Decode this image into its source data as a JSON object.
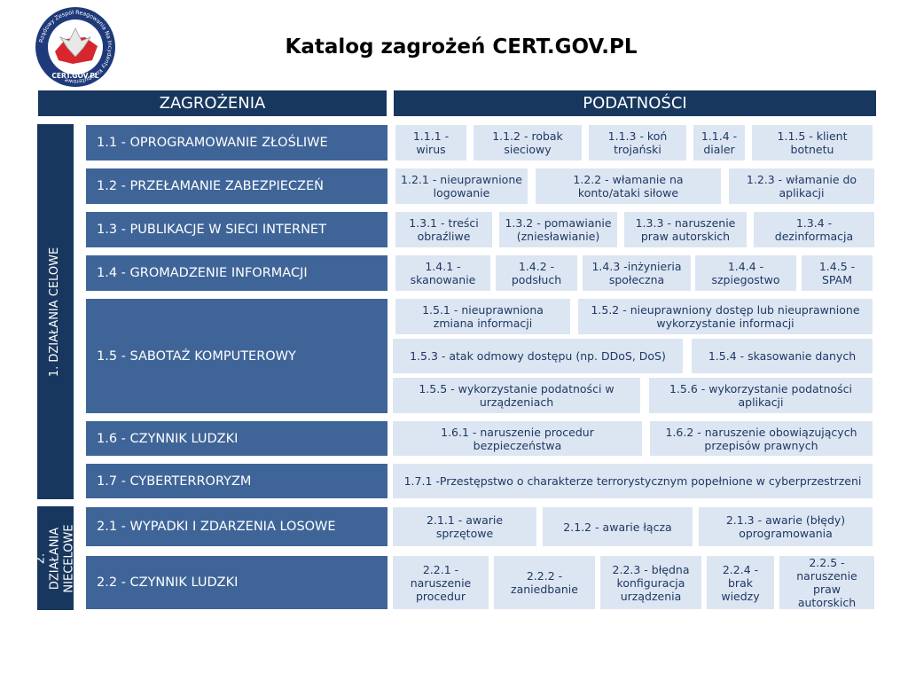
{
  "header": {
    "title": "Katalog zagrożeń CERT.GOV.PL"
  },
  "logo": {
    "ring": "Rządowy Zespół Reagowania Na Incydenty Komputerowe",
    "label": "CERT.GOV.PL"
  },
  "columns": [
    "ZAGROŻENIA",
    "PODATNOŚCI"
  ],
  "groups": [
    {
      "label": "1. DZIAŁANIA CELOWE",
      "rows": [
        {
          "label": "1.1 - OPROGRAMOWANIE ZŁOŚLIWE",
          "items": [
            "1.1.1 - wirus",
            "1.1.2 - robak sieciowy",
            "1.1.3 - koń trojański",
            "1.1.4 - dialer",
            "1.1.5 - klient botnetu"
          ]
        },
        {
          "label": "1.2 - PRZEŁAMANIE ZABEZPIECZEŃ",
          "items": [
            "1.2.1 - nieuprawnione logowanie",
            "1.2.2 - włamanie na konto/ataki siłowe",
            "1.2.3 - włamanie do aplikacji"
          ]
        },
        {
          "label": "1.3 - PUBLIKACJE W SIECI INTERNET",
          "items": [
            "1.3.1 - treści obraźliwe",
            "1.3.2 - pomawianie (zniesławianie)",
            "1.3.3 - naruszenie praw autorskich",
            "1.3.4 - dezinformacja"
          ]
        },
        {
          "label": "1.4 - GROMADZENIE INFORMACJI",
          "items": [
            "1.4.1 - skanowanie",
            "1.4.2 - podsłuch",
            "1.4.3 -inżynieria społeczna",
            "1.4.4 - szpiegostwo",
            "1.4.5 - SPAM"
          ]
        },
        {
          "label": "1.5 - SABOTAŻ KOMPUTEROWY",
          "items": [
            "1.5.1 - nieuprawniona zmiana informacji",
            "1.5.2 - nieuprawniony dostęp lub nieuprawnione wykorzystanie informacji",
            "1.5.3 - atak odmowy dostępu (np. DDoS, DoS)",
            "1.5.4 - skasowanie danych",
            "1.5.5 - wykorzystanie podatności w urządzeniach",
            "1.5.6 - wykorzystanie podatności aplikacji"
          ]
        },
        {
          "label": "1.6 - CZYNNIK LUDZKI",
          "items": [
            "1.6.1 - naruszenie procedur bezpieczeństwa",
            "1.6.2 - naruszenie obowiązujących przepisów prawnych"
          ]
        },
        {
          "label": "1.7 - CYBERTERRORYZM",
          "items": [
            "1.7.1 -Przestępstwo o charakterze terrorystycznym popełnione w cyberprzestrzeni"
          ]
        }
      ]
    },
    {
      "label": "2. DZIAŁANIA NIECELOWE",
      "rows": [
        {
          "label": "2.1 - WYPADKI I ZDARZENIA LOSOWE",
          "items": [
            "2.1.1 - awarie sprzętowe",
            "2.1.2 - awarie łącza",
            "2.1.3 - awarie (błędy) oprogramowania"
          ]
        },
        {
          "label": "2.2 - CZYNNIK LUDZKI",
          "items": [
            "2.2.1 - naruszenie procedur",
            "2.2.2 - zaniedbanie",
            "2.2.3 - błędna konfiguracja urządzenia",
            "2.2.4 - brak wiedzy",
            "2.2.5 - naruszenie praw autorskich"
          ]
        }
      ]
    }
  ]
}
